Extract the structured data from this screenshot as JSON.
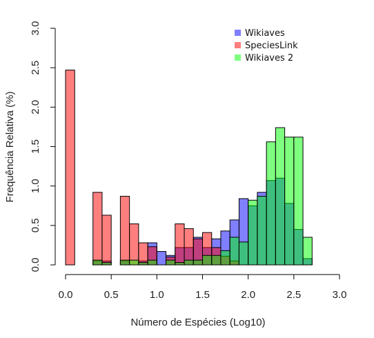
{
  "chart_data": {
    "type": "bar",
    "xlabel": "Número de Espécies (Log10)",
    "ylabel": "Frequência Relativa (%)",
    "xlim": [
      0,
      3
    ],
    "ylim": [
      0,
      3
    ],
    "xticks": [
      "0.0",
      "0.5",
      "1.0",
      "1.5",
      "2.0",
      "2.5",
      "3.0"
    ],
    "yticks": [
      "0.0",
      "0.5",
      "1.0",
      "1.5",
      "2.0",
      "2.5",
      "3.0"
    ],
    "bin_width": 0.1,
    "bins": [
      0.0,
      0.1,
      0.2,
      0.3,
      0.4,
      0.5,
      0.6,
      0.7,
      0.8,
      0.9,
      1.0,
      1.1,
      1.2,
      1.3,
      1.4,
      1.5,
      1.6,
      1.7,
      1.8,
      1.9,
      2.0,
      2.1,
      2.2,
      2.3,
      2.4,
      2.5,
      2.6
    ],
    "legend_position": "top-right",
    "series": [
      {
        "name": "Wikiaves",
        "color": "#0000ff",
        "values": [
          0,
          0,
          0,
          0.05,
          0.05,
          0,
          0.05,
          0,
          0.05,
          0.28,
          0.17,
          0.12,
          0.22,
          0.22,
          0.35,
          0.22,
          0.33,
          0.43,
          0.57,
          0.84,
          0.75,
          0.92,
          1.07,
          1.1,
          0.78,
          0.45,
          0.08
        ]
      },
      {
        "name": "SpeciesLink",
        "color": "#ff0000",
        "values": [
          2.47,
          0,
          0,
          0.92,
          0.63,
          0,
          0.87,
          0.52,
          0.28,
          0.23,
          0,
          0.1,
          0.52,
          0.46,
          0.33,
          0.41,
          0.22,
          0.11,
          0.05,
          0,
          0,
          0,
          0,
          0,
          0,
          0,
          0
        ]
      },
      {
        "name": "Wikiaves 2",
        "color": "#00ff00",
        "values": [
          0,
          0,
          0,
          0.06,
          0.03,
          0,
          0.06,
          0.06,
          0.03,
          0.06,
          0,
          0.06,
          0.03,
          0.06,
          0.06,
          0.12,
          0.12,
          0.18,
          0.35,
          0.29,
          0.82,
          0.87,
          1.56,
          1.74,
          1.62,
          1.62,
          0.35
        ]
      }
    ]
  }
}
